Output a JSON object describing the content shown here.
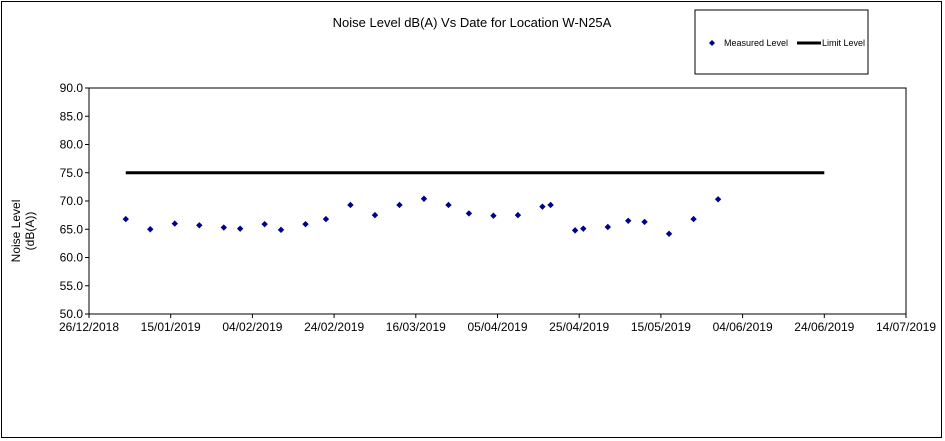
{
  "chart_data": {
    "type": "scatter",
    "title": "Noise Level dB(A) Vs Date for Location W-N25A",
    "xlabel": "",
    "ylabel_lines": [
      "Noise Level",
      "(dB(A))"
    ],
    "ylim": [
      50,
      90
    ],
    "yticks": [
      "50.0",
      "55.0",
      "60.0",
      "65.0",
      "70.0",
      "75.0",
      "80.0",
      "85.0",
      "90.0"
    ],
    "xlim": [
      "2018-12-26",
      "2019-07-14"
    ],
    "xticks": [
      "26/12/2018",
      "15/01/2019",
      "04/02/2019",
      "24/02/2019",
      "16/03/2019",
      "05/04/2019",
      "25/04/2019",
      "15/05/2019",
      "04/06/2019",
      "24/06/2019",
      "14/07/2019"
    ],
    "grid": false,
    "legend_position": "top-right",
    "series": [
      {
        "name": "Measured Level",
        "color": "#00008B",
        "marker": "diamond",
        "points": [
          [
            "2019-01-04",
            66.8
          ],
          [
            "2019-01-10",
            65.0
          ],
          [
            "2019-01-16",
            66.0
          ],
          [
            "2019-01-22",
            65.7
          ],
          [
            "2019-01-28",
            65.3
          ],
          [
            "2019-02-01",
            65.1
          ],
          [
            "2019-02-07",
            65.9
          ],
          [
            "2019-02-11",
            64.9
          ],
          [
            "2019-02-17",
            65.9
          ],
          [
            "2019-02-22",
            66.8
          ],
          [
            "2019-02-28",
            69.3
          ],
          [
            "2019-03-06",
            67.5
          ],
          [
            "2019-03-12",
            69.3
          ],
          [
            "2019-03-18",
            70.4
          ],
          [
            "2019-03-24",
            69.3
          ],
          [
            "2019-03-29",
            67.8
          ],
          [
            "2019-04-04",
            67.4
          ],
          [
            "2019-04-10",
            67.5
          ],
          [
            "2019-04-16",
            69.0
          ],
          [
            "2019-04-18",
            69.3
          ],
          [
            "2019-04-24",
            64.8
          ],
          [
            "2019-04-26",
            65.1
          ],
          [
            "2019-05-02",
            65.4
          ],
          [
            "2019-05-07",
            66.5
          ],
          [
            "2019-05-11",
            66.3
          ],
          [
            "2019-05-17",
            64.2
          ],
          [
            "2019-05-23",
            66.8
          ],
          [
            "2019-05-29",
            70.3
          ]
        ]
      },
      {
        "name": "Limit Level",
        "color": "#000000",
        "type": "line",
        "points": [
          [
            "2019-01-04",
            75.0
          ],
          [
            "2019-06-24",
            75.0
          ]
        ]
      }
    ]
  }
}
